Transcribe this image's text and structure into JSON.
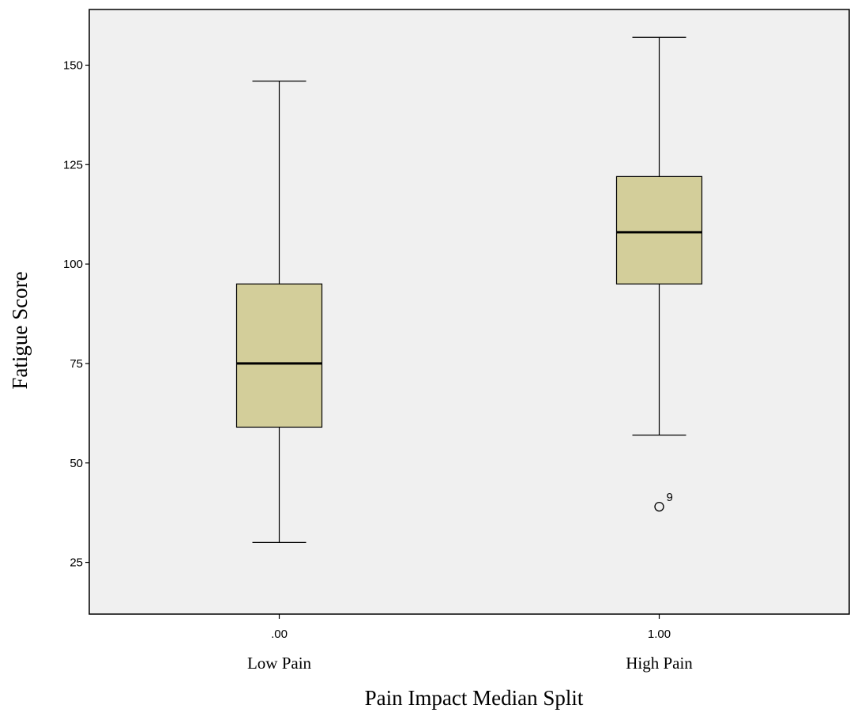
{
  "chart_data": {
    "type": "boxplot",
    "xlabel": "Pain Impact Median Split",
    "ylabel": "Fatigue Score",
    "ylim": [
      12,
      164
    ],
    "yticks": [
      25,
      50,
      75,
      100,
      125,
      150
    ],
    "grid": false,
    "colors": {
      "plot_bg": "#f0f0f0",
      "box_fill": "#d3ce9a",
      "stroke": "#000000"
    },
    "categories": [
      {
        "code": ".00",
        "label": "Low Pain"
      },
      {
        "code": "1.00",
        "label": "High Pain"
      }
    ],
    "boxes": [
      {
        "whisker_low": 30,
        "q1": 59,
        "median": 75,
        "q3": 95,
        "whisker_high": 146,
        "outliers": []
      },
      {
        "whisker_low": 57,
        "q1": 95,
        "median": 108,
        "q3": 122,
        "whisker_high": 157,
        "outliers": [
          {
            "value": 39,
            "label": "9"
          }
        ]
      }
    ]
  }
}
